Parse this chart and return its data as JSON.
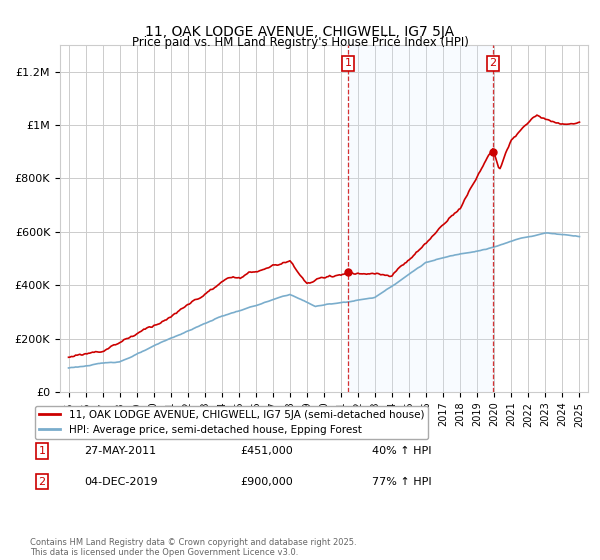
{
  "title": "11, OAK LODGE AVENUE, CHIGWELL, IG7 5JA",
  "subtitle": "Price paid vs. HM Land Registry's House Price Index (HPI)",
  "ylim": [
    0,
    1300000
  ],
  "yticks": [
    0,
    200000,
    400000,
    600000,
    800000,
    1000000,
    1200000
  ],
  "ytick_labels": [
    "£0",
    "£200K",
    "£400K",
    "£600K",
    "£800K",
    "£1M",
    "£1.2M"
  ],
  "xlim_start": 1994.5,
  "xlim_end": 2025.5,
  "bg_color": "#ffffff",
  "plot_bg_color": "#ffffff",
  "grid_color": "#cccccc",
  "shade_color": "#ddeeff",
  "sale1_x": 2011.4,
  "sale1_y": 451000,
  "sale1_label": "1",
  "sale1_date": "27-MAY-2011",
  "sale1_price": "£451,000",
  "sale1_hpi": "40% ↑ HPI",
  "sale2_x": 2019.92,
  "sale2_y": 900000,
  "sale2_label": "2",
  "sale2_date": "04-DEC-2019",
  "sale2_price": "£900,000",
  "sale2_hpi": "77% ↑ HPI",
  "red_line_color": "#cc0000",
  "blue_line_color": "#7aadcc",
  "footer": "Contains HM Land Registry data © Crown copyright and database right 2025.\nThis data is licensed under the Open Government Licence v3.0.",
  "legend_label1": "11, OAK LODGE AVENUE, CHIGWELL, IG7 5JA (semi-detached house)",
  "legend_label2": "HPI: Average price, semi-detached house, Epping Forest"
}
